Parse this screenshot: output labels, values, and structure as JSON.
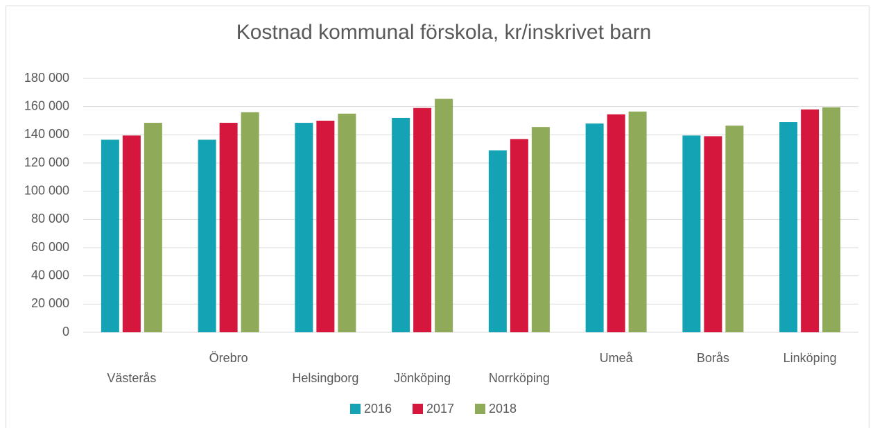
{
  "chart_data": {
    "type": "bar",
    "title": "Kostnad kommunal förskola, kr/inskrivet barn",
    "categories": [
      "Västerås",
      "Örebro",
      "Helsingborg",
      "Jönköping",
      "Norrköping",
      "Umeå",
      "Borås",
      "Linköping"
    ],
    "series": [
      {
        "name": "2016",
        "color": "#14a3b5",
        "values": [
          136500,
          136500,
          148500,
          152000,
          129000,
          148000,
          139500,
          149000
        ]
      },
      {
        "name": "2017",
        "color": "#d5173d",
        "values": [
          139500,
          148500,
          150000,
          159000,
          137000,
          154500,
          139000,
          158000
        ]
      },
      {
        "name": "2018",
        "color": "#8fab5a",
        "values": [
          148500,
          156000,
          155000,
          165500,
          145500,
          156500,
          146500,
          159500
        ]
      }
    ],
    "ylim": [
      0,
      180000
    ],
    "yticks": [
      0,
      {
        "value": 20000,
        "label": "20 000"
      },
      {
        "value": 40000,
        "label": "40 000"
      },
      {
        "value": 60000,
        "label": "60 000"
      },
      {
        "value": 80000,
        "label": "80 000"
      },
      {
        "value": 100000,
        "label": "100 000"
      },
      {
        "value": 120000,
        "label": "120 000"
      },
      {
        "value": 140000,
        "label": "140 000"
      },
      {
        "value": 160000,
        "label": "160 000"
      },
      {
        "value": 180000,
        "label": "180 000"
      }
    ],
    "grid": true,
    "legend": "bottom"
  }
}
